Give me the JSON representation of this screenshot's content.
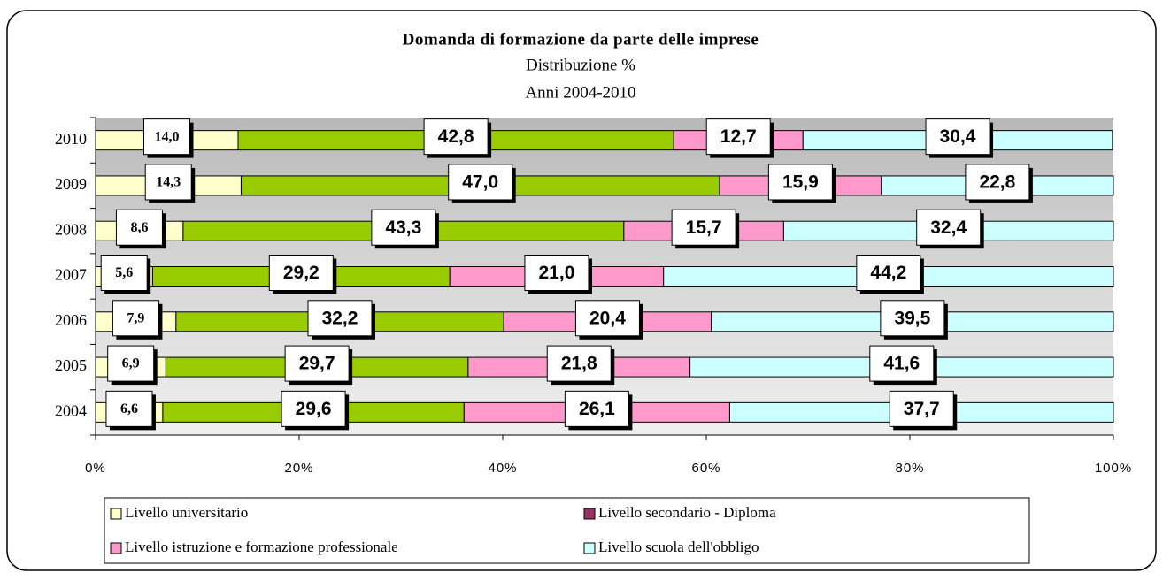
{
  "chart_data": {
    "type": "stacked_barh",
    "title": "Domanda di formazione da parte delle imprese",
    "subtitle": "Distribuzione %",
    "subtitle2": "Anni 2004-2010",
    "categories": [
      "2004",
      "2005",
      "2006",
      "2007",
      "2008",
      "2009",
      "2010"
    ],
    "series": [
      {
        "name": "Livello universitario",
        "color": "#ffffcc",
        "values": [
          6.6,
          6.9,
          7.9,
          5.6,
          8.6,
          14.3,
          14.0
        ],
        "value_labels": [
          "6,6",
          "6,9",
          "7,9",
          "5,6",
          "8,6",
          "14,3",
          "14,0"
        ]
      },
      {
        "name": "Livello secondario - Diploma",
        "color": "#99cc00",
        "legend_color": "#993366",
        "values": [
          29.6,
          29.7,
          32.2,
          29.2,
          43.3,
          47.0,
          42.8
        ],
        "value_labels": [
          "29,6",
          "29,7",
          "32,2",
          "29,2",
          "43,3",
          "47,0",
          "42,8"
        ]
      },
      {
        "name": "Livello istruzione e formazione professionale",
        "color": "#ff99cc",
        "values": [
          26.1,
          21.8,
          20.4,
          21.0,
          15.7,
          15.9,
          12.7
        ],
        "value_labels": [
          "26,1",
          "21,8",
          "20,4",
          "21,0",
          "15,7",
          "15,9",
          "12,7"
        ]
      },
      {
        "name": "Livello scuola dell'obbligo",
        "color": "#ccffff",
        "values": [
          37.7,
          41.6,
          39.5,
          44.2,
          32.4,
          22.8,
          30.4
        ],
        "value_labels": [
          "37,7",
          "41,6",
          "39,5",
          "44,2",
          "32,4",
          "22,8",
          "30,4"
        ]
      }
    ],
    "xlim": [
      0,
      100
    ],
    "xticks": [
      {
        "value": 0,
        "label": "0%"
      },
      {
        "value": 20,
        "label": "20%"
      },
      {
        "value": 40,
        "label": "40%"
      },
      {
        "value": 60,
        "label": "60%"
      },
      {
        "value": 80,
        "label": "80%"
      },
      {
        "value": 100,
        "label": "100%"
      }
    ]
  }
}
